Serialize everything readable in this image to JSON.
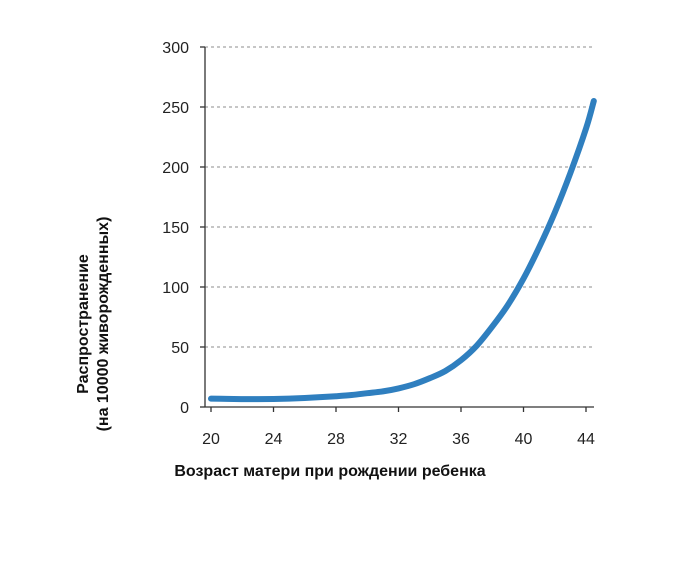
{
  "chart_data": {
    "type": "line",
    "title": "",
    "xlabel": "Возраст матери при рождении ребенка",
    "ylabel_lines": [
      "Распространение",
      "(на 10000 живорожденных)"
    ],
    "xlim": [
      20,
      44.5
    ],
    "ylim": [
      0,
      300
    ],
    "x_ticks": [
      20,
      24,
      28,
      32,
      36,
      40,
      44
    ],
    "y_ticks": [
      0,
      50,
      100,
      150,
      200,
      250,
      300
    ],
    "x_tick_labels": [
      "20",
      "24",
      "28",
      "32",
      "36",
      "40",
      "44"
    ],
    "y_tick_labels": [
      "0",
      "50",
      "100",
      "150",
      "200",
      "250",
      "300"
    ],
    "grid": "horizontal-dashed",
    "series": [
      {
        "color": "#2f7fbf",
        "x": [
          20,
          21,
          22,
          23,
          24,
          25,
          26,
          27,
          28,
          29,
          30,
          31,
          32,
          33,
          34,
          35,
          36,
          37,
          38,
          39,
          40,
          41,
          42,
          43,
          44,
          44.5
        ],
        "y": [
          7,
          6.8,
          6.6,
          6.6,
          6.7,
          7,
          7.5,
          8.2,
          9,
          10,
          11.5,
          13,
          15.5,
          19,
          24,
          30,
          39,
          51,
          67,
          85,
          107,
          133,
          162,
          195,
          232,
          255
        ]
      }
    ]
  }
}
